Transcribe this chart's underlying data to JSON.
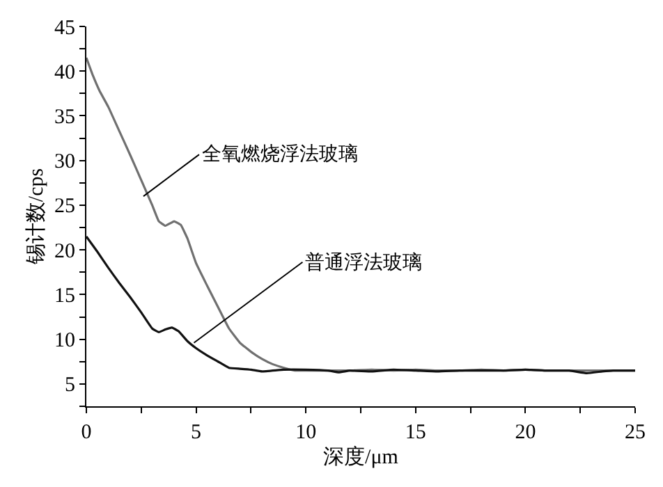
{
  "chart_data": {
    "type": "line",
    "xlabel": "深度/μm",
    "ylabel": "锡计数/cps",
    "xlim": [
      0,
      25
    ],
    "ylim": [
      2.5,
      45
    ],
    "xticks": [
      0,
      {
        "value": 2.5,
        "label": null
      },
      5,
      {
        "value": 7.5,
        "label": null
      },
      10,
      {
        "value": 12.5,
        "label": null
      },
      15,
      {
        "value": 17.5,
        "label": null
      },
      20,
      {
        "value": 22.5,
        "label": null
      },
      25
    ],
    "yticks": [
      {
        "value": 2.5,
        "label": null
      },
      5,
      {
        "value": 7.5,
        "label": null
      },
      10,
      {
        "value": 12.5,
        "label": null
      },
      15,
      {
        "value": 17.5,
        "label": null
      },
      20,
      {
        "value": 22.5,
        "label": null
      },
      25,
      {
        "value": 27.5,
        "label": null
      },
      30,
      {
        "value": 32.5,
        "label": null
      },
      35,
      {
        "value": 37.5,
        "label": null
      },
      40,
      {
        "value": 42.5,
        "label": null
      },
      45
    ],
    "legend": false,
    "marker": "none",
    "line_style": "solid",
    "series": [
      {
        "color": "#707070",
        "x": [
          0,
          0.3,
          0.6,
          1,
          1.5,
          2,
          2.5,
          3,
          3.3,
          3.6,
          4,
          4.3,
          4.6,
          5,
          5.5,
          6,
          6.5,
          7,
          7.5,
          8,
          8.5,
          9,
          9.5,
          10,
          11,
          12,
          13,
          14,
          15,
          16,
          17,
          18,
          19,
          20,
          21,
          22,
          23,
          24,
          25
        ],
        "values": [
          41.5,
          39.5,
          37.8,
          36,
          33.3,
          30.6,
          27.8,
          25,
          23.2,
          22.7,
          23.2,
          22.8,
          21.3,
          18.5,
          16,
          13.6,
          11.2,
          9.6,
          8.6,
          7.8,
          7.2,
          6.8,
          6.5,
          6.5,
          6.5,
          6.5,
          6.6,
          6.5,
          6.6,
          6.5,
          6.5,
          6.6,
          6.5,
          6.6,
          6.5,
          6.5,
          6.5,
          6.5,
          6.5
        ]
      },
      {
        "color": "#111111",
        "x": [
          0,
          0.5,
          1,
          1.5,
          2,
          2.5,
          3,
          3.3,
          3.6,
          3.9,
          4.2,
          4.6,
          5,
          5.5,
          6,
          6.5,
          7,
          7.5,
          8,
          9,
          10,
          11,
          11.5,
          12,
          13,
          14,
          15,
          16,
          17,
          18,
          19,
          20,
          21,
          22,
          22.8,
          23.5,
          24,
          25
        ],
        "values": [
          21.5,
          19.8,
          18,
          16.3,
          14.7,
          13,
          11.2,
          10.8,
          11.1,
          11.3,
          10.9,
          9.8,
          9,
          8.2,
          7.5,
          6.8,
          6.7,
          6.6,
          6.4,
          6.6,
          6.6,
          6.5,
          6.3,
          6.5,
          6.4,
          6.6,
          6.5,
          6.4,
          6.5,
          6.5,
          6.5,
          6.6,
          6.5,
          6.5,
          6.2,
          6.4,
          6.5,
          6.5
        ]
      }
    ],
    "annotations": [
      {
        "text": "全氧燃烧浮法玻璃",
        "x": 2.6,
        "y": 26
      },
      {
        "text": "普通浮法玻璃",
        "x": 4.9,
        "y": 9.6
      }
    ]
  }
}
